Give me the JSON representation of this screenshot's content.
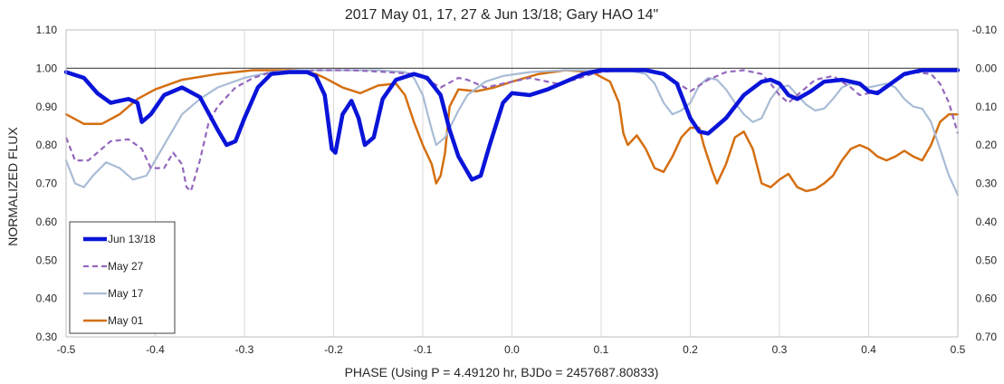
{
  "chart_data": {
    "type": "line",
    "title": "2017 May 01, 17, 27 & Jun 13/18; Gary HAO 14\"",
    "xlabel": "PHASE (Using P = 4.49120 hr, BJDo = 2457687.80833)",
    "ylabel": "NORMALIZED FLUX",
    "xlim": [
      -0.5,
      0.5
    ],
    "ylim": [
      0.3,
      1.1
    ],
    "y2lim": [
      0.7,
      -0.1
    ],
    "x_ticks": [
      "-0.5",
      "-0.4",
      "-0.3",
      "-0.2",
      "-0.1",
      "0.0",
      "0.1",
      "0.2",
      "0.3",
      "0.4",
      "0.5"
    ],
    "y_ticks": [
      "0.30",
      "0.40",
      "0.50",
      "0.60",
      "0.70",
      "0.80",
      "0.90",
      "1.00",
      "1.10"
    ],
    "y2_ticks": [
      "0.70",
      "0.60",
      "0.50",
      "0.40",
      "0.30",
      "0.20",
      "0.10",
      "0.00",
      "-0.10"
    ],
    "reference_line": 1.0,
    "grid": "vertical",
    "legend_position": "bottom-left",
    "series": [
      {
        "name": "Jun 13/18",
        "color": "#0a14d8",
        "dash": "solid",
        "width": 4.5,
        "points": [
          [
            -0.5,
            0.99
          ],
          [
            -0.48,
            0.975
          ],
          [
            -0.465,
            0.935
          ],
          [
            -0.45,
            0.91
          ],
          [
            -0.43,
            0.92
          ],
          [
            -0.42,
            0.91
          ],
          [
            -0.415,
            0.86
          ],
          [
            -0.405,
            0.88
          ],
          [
            -0.39,
            0.93
          ],
          [
            -0.37,
            0.95
          ],
          [
            -0.35,
            0.925
          ],
          [
            -0.33,
            0.84
          ],
          [
            -0.32,
            0.8
          ],
          [
            -0.31,
            0.81
          ],
          [
            -0.3,
            0.87
          ],
          [
            -0.285,
            0.95
          ],
          [
            -0.27,
            0.985
          ],
          [
            -0.25,
            0.99
          ],
          [
            -0.23,
            0.99
          ],
          [
            -0.22,
            0.98
          ],
          [
            -0.21,
            0.93
          ],
          [
            -0.202,
            0.79
          ],
          [
            -0.198,
            0.78
          ],
          [
            -0.19,
            0.88
          ],
          [
            -0.18,
            0.915
          ],
          [
            -0.172,
            0.87
          ],
          [
            -0.165,
            0.8
          ],
          [
            -0.155,
            0.82
          ],
          [
            -0.145,
            0.92
          ],
          [
            -0.13,
            0.97
          ],
          [
            -0.11,
            0.985
          ],
          [
            -0.095,
            0.975
          ],
          [
            -0.08,
            0.93
          ],
          [
            -0.07,
            0.84
          ],
          [
            -0.06,
            0.77
          ],
          [
            -0.045,
            0.71
          ],
          [
            -0.035,
            0.72
          ],
          [
            -0.025,
            0.8
          ],
          [
            -0.01,
            0.91
          ],
          [
            0.0,
            0.935
          ],
          [
            0.02,
            0.93
          ],
          [
            0.04,
            0.945
          ],
          [
            0.06,
            0.965
          ],
          [
            0.08,
            0.985
          ],
          [
            0.1,
            0.995
          ],
          [
            0.12,
            0.995
          ],
          [
            0.15,
            0.995
          ],
          [
            0.17,
            0.985
          ],
          [
            0.185,
            0.96
          ],
          [
            0.2,
            0.87
          ],
          [
            0.21,
            0.835
          ],
          [
            0.22,
            0.83
          ],
          [
            0.24,
            0.87
          ],
          [
            0.26,
            0.93
          ],
          [
            0.28,
            0.965
          ],
          [
            0.29,
            0.97
          ],
          [
            0.3,
            0.96
          ],
          [
            0.31,
            0.93
          ],
          [
            0.32,
            0.92
          ],
          [
            0.335,
            0.94
          ],
          [
            0.35,
            0.965
          ],
          [
            0.37,
            0.97
          ],
          [
            0.39,
            0.96
          ],
          [
            0.4,
            0.94
          ],
          [
            0.41,
            0.935
          ],
          [
            0.425,
            0.96
          ],
          [
            0.44,
            0.985
          ],
          [
            0.46,
            0.995
          ],
          [
            0.5,
            0.995
          ]
        ]
      },
      {
        "name": "May 27",
        "color": "#9467bd",
        "dash": "dashed",
        "width": 2.2,
        "points": [
          [
            -0.5,
            0.82
          ],
          [
            -0.49,
            0.76
          ],
          [
            -0.475,
            0.76
          ],
          [
            -0.46,
            0.79
          ],
          [
            -0.45,
            0.81
          ],
          [
            -0.43,
            0.815
          ],
          [
            -0.415,
            0.79
          ],
          [
            -0.405,
            0.74
          ],
          [
            -0.39,
            0.74
          ],
          [
            -0.38,
            0.78
          ],
          [
            -0.37,
            0.75
          ],
          [
            -0.365,
            0.69
          ],
          [
            -0.36,
            0.68
          ],
          [
            -0.35,
            0.76
          ],
          [
            -0.34,
            0.86
          ],
          [
            -0.33,
            0.9
          ],
          [
            -0.31,
            0.95
          ],
          [
            -0.29,
            0.975
          ],
          [
            -0.27,
            0.99
          ],
          [
            -0.24,
            0.99
          ],
          [
            -0.22,
            0.995
          ],
          [
            -0.18,
            0.995
          ],
          [
            -0.14,
            0.99
          ],
          [
            -0.11,
            0.985
          ],
          [
            -0.095,
            0.97
          ],
          [
            -0.08,
            0.95
          ],
          [
            -0.06,
            0.975
          ],
          [
            -0.05,
            0.97
          ],
          [
            -0.03,
            0.95
          ],
          [
            -0.01,
            0.96
          ],
          [
            0.02,
            0.975
          ],
          [
            0.05,
            0.96
          ],
          [
            0.07,
            0.97
          ],
          [
            0.09,
            0.985
          ],
          [
            0.1,
            0.99
          ],
          [
            0.12,
            0.995
          ],
          [
            0.15,
            0.995
          ],
          [
            0.17,
            0.985
          ],
          [
            0.19,
            0.955
          ],
          [
            0.2,
            0.94
          ],
          [
            0.22,
            0.97
          ],
          [
            0.24,
            0.99
          ],
          [
            0.26,
            0.995
          ],
          [
            0.28,
            0.985
          ],
          [
            0.29,
            0.96
          ],
          [
            0.3,
            0.93
          ],
          [
            0.31,
            0.91
          ],
          [
            0.32,
            0.93
          ],
          [
            0.34,
            0.97
          ],
          [
            0.36,
            0.98
          ],
          [
            0.38,
            0.95
          ],
          [
            0.39,
            0.93
          ],
          [
            0.41,
            0.94
          ],
          [
            0.43,
            0.97
          ],
          [
            0.45,
            0.99
          ],
          [
            0.47,
            0.985
          ],
          [
            0.48,
            0.96
          ],
          [
            0.49,
            0.91
          ],
          [
            0.5,
            0.83
          ]
        ]
      },
      {
        "name": "May 17",
        "color": "#a9bcd6",
        "dash": "solid",
        "width": 2.2,
        "points": [
          [
            -0.5,
            0.76
          ],
          [
            -0.49,
            0.7
          ],
          [
            -0.48,
            0.69
          ],
          [
            -0.47,
            0.72
          ],
          [
            -0.455,
            0.755
          ],
          [
            -0.44,
            0.74
          ],
          [
            -0.425,
            0.71
          ],
          [
            -0.41,
            0.72
          ],
          [
            -0.39,
            0.8
          ],
          [
            -0.37,
            0.88
          ],
          [
            -0.35,
            0.92
          ],
          [
            -0.33,
            0.95
          ],
          [
            -0.3,
            0.975
          ],
          [
            -0.27,
            0.99
          ],
          [
            -0.24,
            0.995
          ],
          [
            -0.2,
            0.995
          ],
          [
            -0.15,
            0.995
          ],
          [
            -0.12,
            0.99
          ],
          [
            -0.11,
            0.975
          ],
          [
            -0.1,
            0.93
          ],
          [
            -0.09,
            0.84
          ],
          [
            -0.085,
            0.8
          ],
          [
            -0.075,
            0.82
          ],
          [
            -0.06,
            0.89
          ],
          [
            -0.05,
            0.93
          ],
          [
            -0.03,
            0.965
          ],
          [
            -0.01,
            0.98
          ],
          [
            0.02,
            0.99
          ],
          [
            0.06,
            0.995
          ],
          [
            0.1,
            0.995
          ],
          [
            0.13,
            0.995
          ],
          [
            0.15,
            0.985
          ],
          [
            0.16,
            0.96
          ],
          [
            0.17,
            0.91
          ],
          [
            0.18,
            0.88
          ],
          [
            0.19,
            0.89
          ],
          [
            0.2,
            0.91
          ],
          [
            0.21,
            0.955
          ],
          [
            0.22,
            0.975
          ],
          [
            0.23,
            0.97
          ],
          [
            0.24,
            0.945
          ],
          [
            0.25,
            0.91
          ],
          [
            0.26,
            0.88
          ],
          [
            0.27,
            0.86
          ],
          [
            0.28,
            0.87
          ],
          [
            0.29,
            0.92
          ],
          [
            0.3,
            0.95
          ],
          [
            0.31,
            0.955
          ],
          [
            0.32,
            0.93
          ],
          [
            0.33,
            0.905
          ],
          [
            0.34,
            0.89
          ],
          [
            0.35,
            0.895
          ],
          [
            0.36,
            0.92
          ],
          [
            0.37,
            0.95
          ],
          [
            0.38,
            0.96
          ],
          [
            0.39,
            0.955
          ],
          [
            0.4,
            0.95
          ],
          [
            0.42,
            0.96
          ],
          [
            0.43,
            0.95
          ],
          [
            0.44,
            0.92
          ],
          [
            0.45,
            0.9
          ],
          [
            0.46,
            0.895
          ],
          [
            0.47,
            0.86
          ],
          [
            0.48,
            0.79
          ],
          [
            0.49,
            0.72
          ],
          [
            0.5,
            0.67
          ]
        ]
      },
      {
        "name": "May 01",
        "color": "#d46f11",
        "dash": "solid",
        "width": 2.5,
        "points": [
          [
            -0.5,
            0.88
          ],
          [
            -0.48,
            0.855
          ],
          [
            -0.46,
            0.855
          ],
          [
            -0.44,
            0.88
          ],
          [
            -0.42,
            0.92
          ],
          [
            -0.4,
            0.945
          ],
          [
            -0.37,
            0.97
          ],
          [
            -0.33,
            0.985
          ],
          [
            -0.29,
            0.995
          ],
          [
            -0.24,
            0.995
          ],
          [
            -0.22,
            0.985
          ],
          [
            -0.21,
            0.975
          ],
          [
            -0.19,
            0.95
          ],
          [
            -0.17,
            0.935
          ],
          [
            -0.15,
            0.955
          ],
          [
            -0.13,
            0.96
          ],
          [
            -0.12,
            0.93
          ],
          [
            -0.11,
            0.86
          ],
          [
            -0.1,
            0.8
          ],
          [
            -0.09,
            0.75
          ],
          [
            -0.085,
            0.7
          ],
          [
            -0.08,
            0.72
          ],
          [
            -0.075,
            0.78
          ],
          [
            -0.07,
            0.9
          ],
          [
            -0.06,
            0.945
          ],
          [
            -0.04,
            0.94
          ],
          [
            -0.02,
            0.95
          ],
          [
            0.0,
            0.965
          ],
          [
            0.03,
            0.985
          ],
          [
            0.06,
            0.995
          ],
          [
            0.09,
            0.99
          ],
          [
            0.11,
            0.965
          ],
          [
            0.12,
            0.91
          ],
          [
            0.125,
            0.83
          ],
          [
            0.13,
            0.8
          ],
          [
            0.14,
            0.825
          ],
          [
            0.15,
            0.79
          ],
          [
            0.16,
            0.74
          ],
          [
            0.17,
            0.73
          ],
          [
            0.18,
            0.77
          ],
          [
            0.19,
            0.82
          ],
          [
            0.2,
            0.845
          ],
          [
            0.21,
            0.845
          ],
          [
            0.215,
            0.8
          ],
          [
            0.225,
            0.73
          ],
          [
            0.23,
            0.7
          ],
          [
            0.24,
            0.75
          ],
          [
            0.25,
            0.82
          ],
          [
            0.26,
            0.835
          ],
          [
            0.27,
            0.79
          ],
          [
            0.28,
            0.7
          ],
          [
            0.29,
            0.69
          ],
          [
            0.3,
            0.71
          ],
          [
            0.31,
            0.725
          ],
          [
            0.32,
            0.69
          ],
          [
            0.33,
            0.68
          ],
          [
            0.34,
            0.685
          ],
          [
            0.35,
            0.7
          ],
          [
            0.36,
            0.72
          ],
          [
            0.37,
            0.76
          ],
          [
            0.38,
            0.79
          ],
          [
            0.39,
            0.8
          ],
          [
            0.4,
            0.79
          ],
          [
            0.41,
            0.77
          ],
          [
            0.42,
            0.76
          ],
          [
            0.43,
            0.77
          ],
          [
            0.44,
            0.785
          ],
          [
            0.45,
            0.77
          ],
          [
            0.46,
            0.76
          ],
          [
            0.47,
            0.8
          ],
          [
            0.48,
            0.86
          ],
          [
            0.49,
            0.88
          ],
          [
            0.5,
            0.88
          ]
        ]
      }
    ]
  }
}
